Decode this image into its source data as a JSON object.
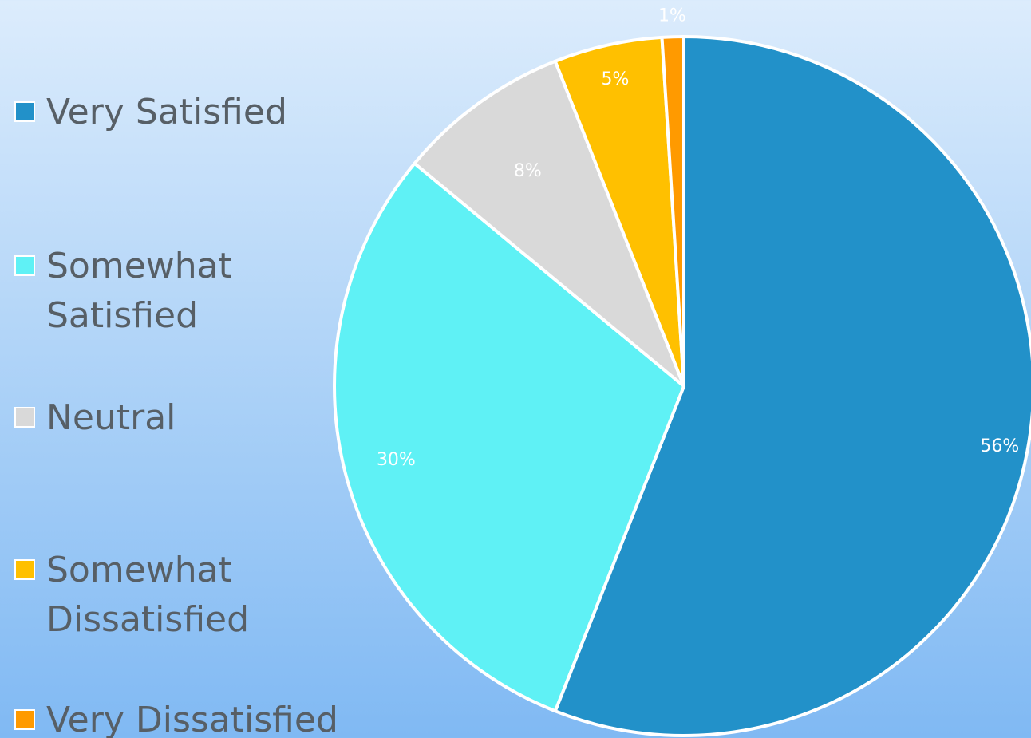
{
  "chart_data": {
    "type": "pie",
    "title": "",
    "legend_position": "left",
    "slices": [
      {
        "name": "Very Satisfied",
        "value": 56,
        "label": "56%",
        "color": "#2291c9"
      },
      {
        "name": "Somewhat Satisfied",
        "value": 30,
        "label": "30%",
        "color": "#5ff1f5"
      },
      {
        "name": "Neutral",
        "value": 8,
        "label": "8%",
        "color": "#d9d9d9"
      },
      {
        "name": "Somewhat Dissatisfied",
        "value": 5,
        "label": "5%",
        "color": "#ffc000"
      },
      {
        "name": "Very Dissatisfied",
        "value": 1,
        "label": "1%",
        "color": "#ff9a00"
      }
    ]
  }
}
